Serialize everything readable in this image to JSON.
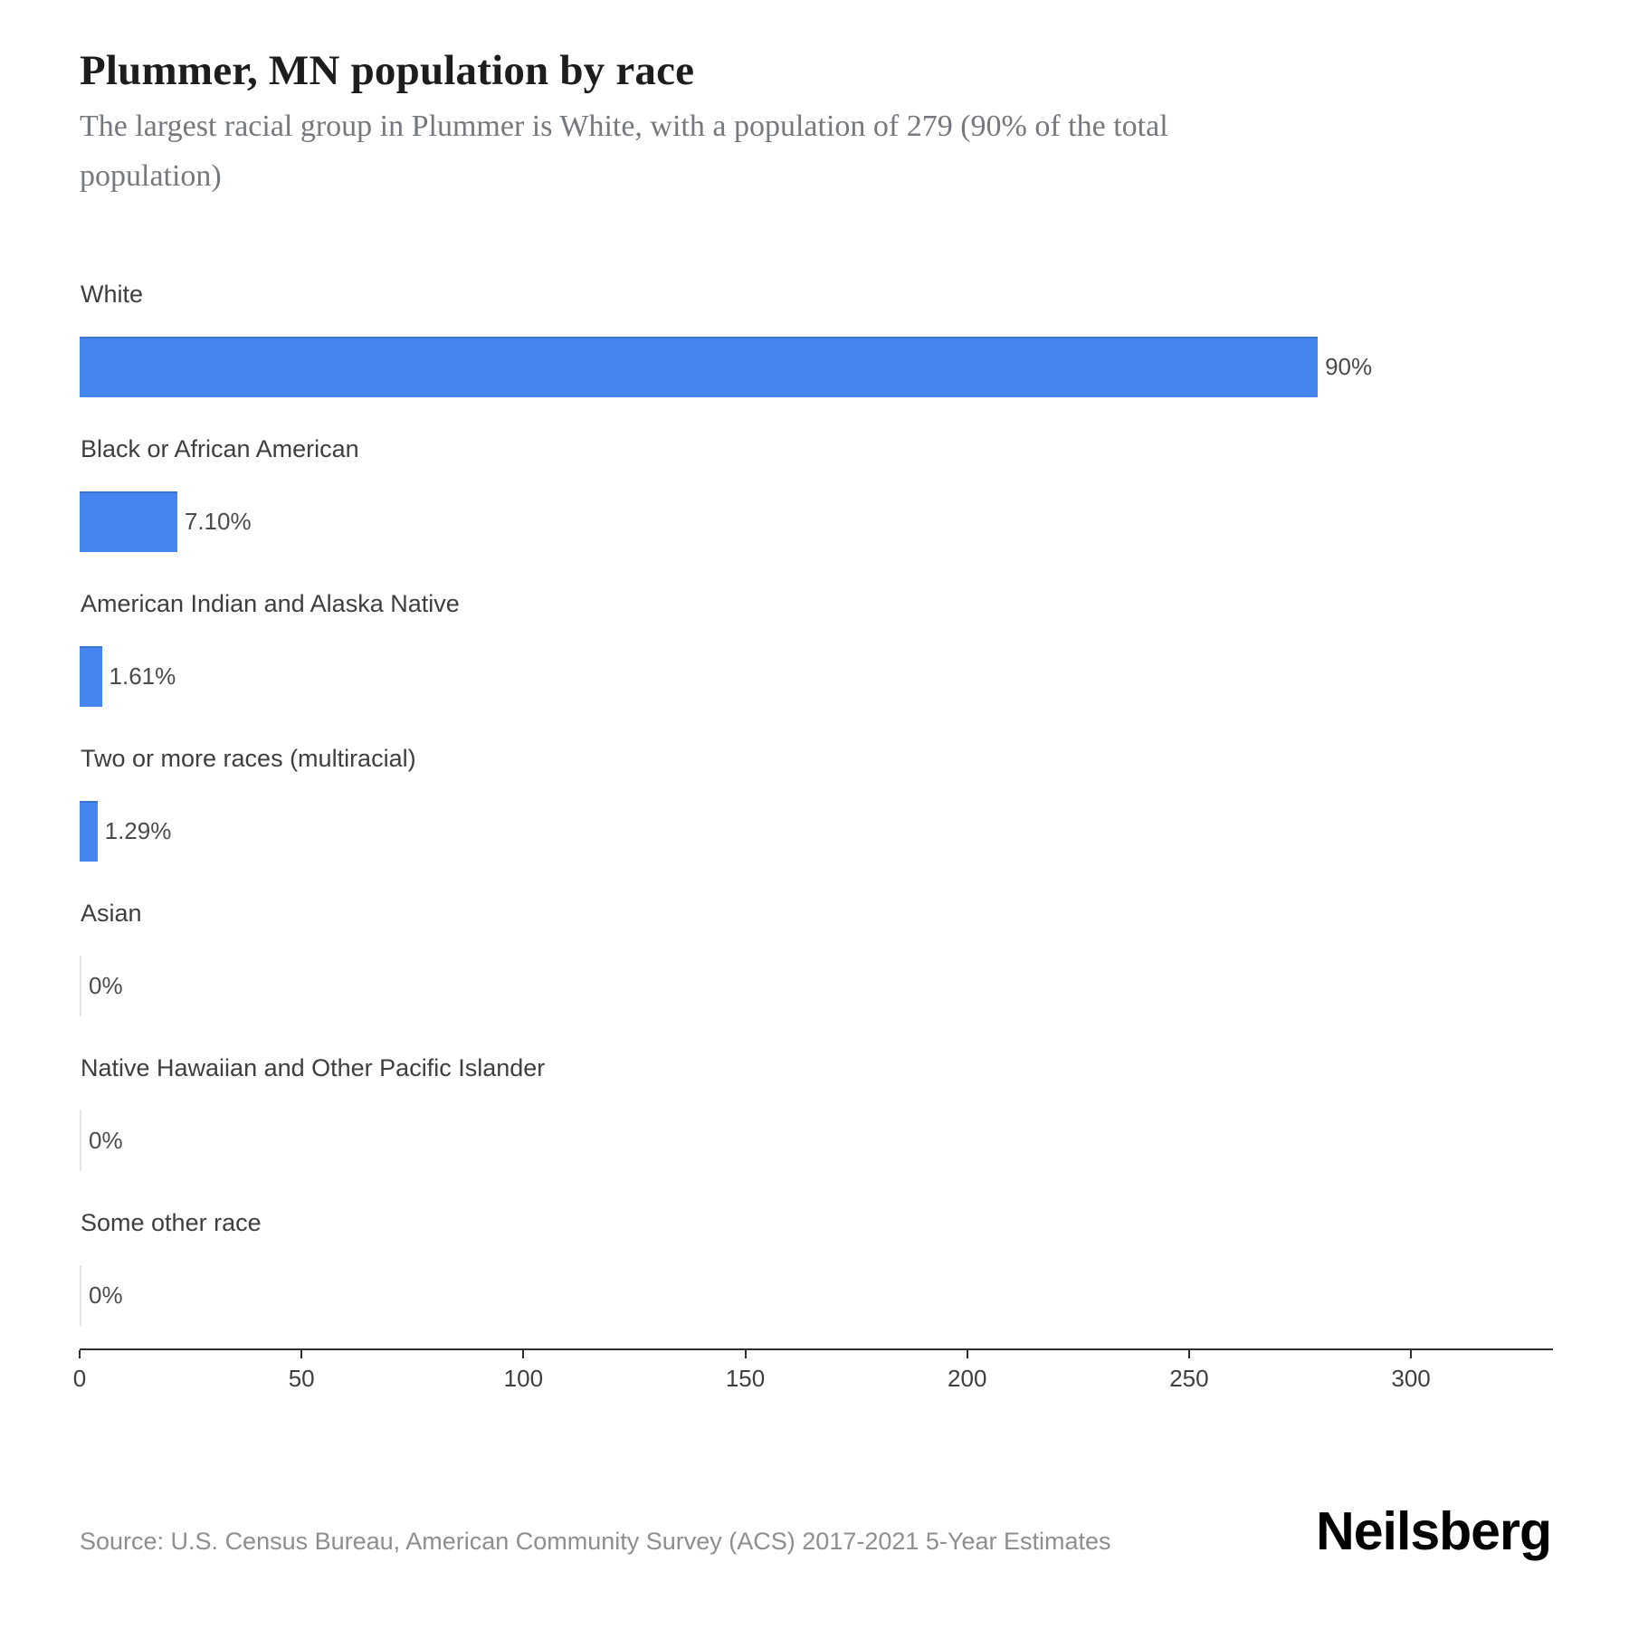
{
  "header": {
    "title": "Plummer, MN population by race",
    "subtitle": "The largest racial group in Plummer is White, with a population of 279 (90% of the total population)"
  },
  "chart_data": {
    "type": "bar",
    "orientation": "horizontal",
    "title": "Plummer, MN population by race",
    "subtitle": "The largest racial group in Plummer is White, with a population of 279 (90% of the total population)",
    "categories": [
      "White",
      "Black or African American",
      "American Indian and Alaska Native",
      "Two or more races (multiracial)",
      "Asian",
      "Native Hawaiian and Other Pacific Islander",
      "Some other race"
    ],
    "values": [
      279,
      22,
      5,
      4,
      0,
      0,
      0
    ],
    "value_labels": [
      "90%",
      "7.10%",
      "1.61%",
      "1.29%",
      "0%",
      "0%",
      "0%"
    ],
    "x_ticks": [
      0,
      50,
      100,
      150,
      200,
      250,
      300
    ],
    "xlim": [
      0,
      332
    ],
    "xlabel": "",
    "ylabel": "",
    "grid": false,
    "legend": false,
    "bar_color": "#4585f0"
  },
  "footer": {
    "source": "Source: U.S. Census Bureau, American Community Survey (ACS) 2017-2021 5-Year Estimates",
    "brand": "Neilsberg"
  }
}
